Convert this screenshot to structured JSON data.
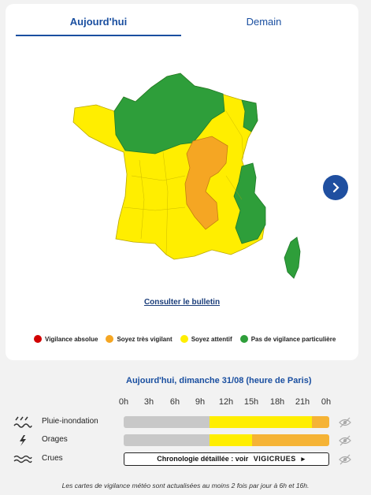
{
  "tabs": {
    "today": "Aujourd'hui",
    "tomorrow": "Demain"
  },
  "map": {
    "alt": "France vigilance map"
  },
  "bulletin_link": "Consulter le bulletin",
  "legend": [
    {
      "label": "Vigilance absolue",
      "color": "#d10000"
    },
    {
      "label": "Soyez très vigilant",
      "color": "#f5a623"
    },
    {
      "label": "Soyez attentif",
      "color": "#ffee00"
    },
    {
      "label": "Pas de vigilance particulière",
      "color": "#2e9e3a"
    }
  ],
  "timeline": {
    "title": "Aujourd'hui, dimanche 31/08 (heure de Paris)",
    "hours": [
      "0h",
      "3h",
      "6h",
      "9h",
      "12h",
      "15h",
      "18h",
      "21h",
      "0h"
    ],
    "rows": [
      {
        "label": "Pluie-inondation",
        "icon": "rain-flood-icon",
        "segments": [
          {
            "from": 0,
            "to": 10,
            "color": "#c8c8c8"
          },
          {
            "from": 10,
            "to": 22,
            "color": "#ffee00"
          },
          {
            "from": 22,
            "to": 24,
            "color": "#f5b335"
          }
        ]
      },
      {
        "label": "Orages",
        "icon": "lightning-icon",
        "segments": [
          {
            "from": 0,
            "to": 10,
            "color": "#c8c8c8"
          },
          {
            "from": 10,
            "to": 15,
            "color": "#ffee00"
          },
          {
            "from": 15,
            "to": 24,
            "color": "#f5b335"
          }
        ]
      },
      {
        "label": "Crues",
        "icon": "waves-icon",
        "link": "Chronologie détaillée : voir",
        "brand": "VIGICRUES",
        "arrow": "▸"
      }
    ]
  },
  "footer": "Les cartes de vigilance météo sont actualisées au moins 2 fois par jour à 6h et 16h."
}
